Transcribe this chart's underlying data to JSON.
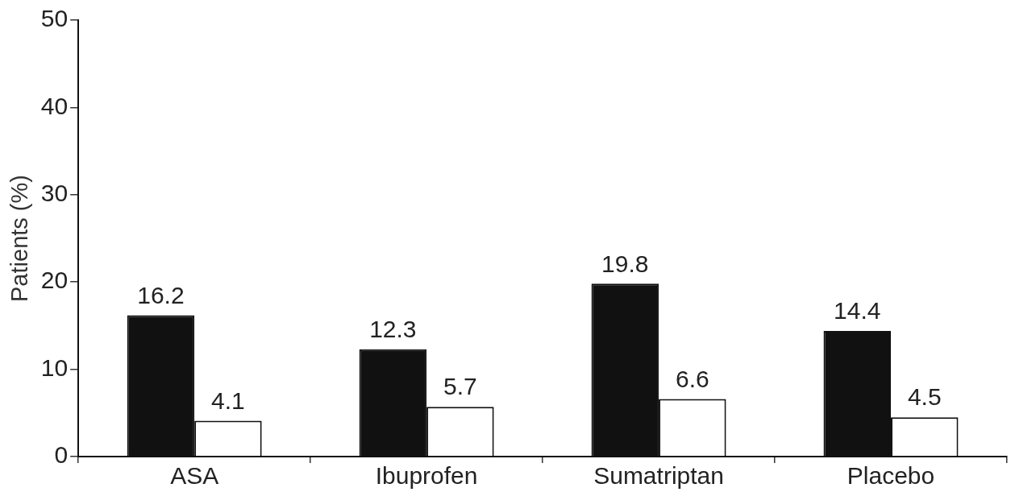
{
  "chart_data": {
    "type": "bar",
    "ylabel": "Patients (%)",
    "categories": [
      "ASA",
      "Ibuprofen",
      "Sumatriptan",
      "Placebo"
    ],
    "series": [
      {
        "color": "#111111",
        "values": [
          16.2,
          12.3,
          19.8,
          14.4
        ]
      },
      {
        "color": "#ffffff",
        "values": [
          4.1,
          5.7,
          6.6,
          4.5
        ]
      }
    ],
    "ylim": [
      0,
      50
    ],
    "yticks": [
      0,
      10,
      20,
      30,
      40,
      50
    ],
    "grid": false,
    "legend": false,
    "data_labels": true
  }
}
